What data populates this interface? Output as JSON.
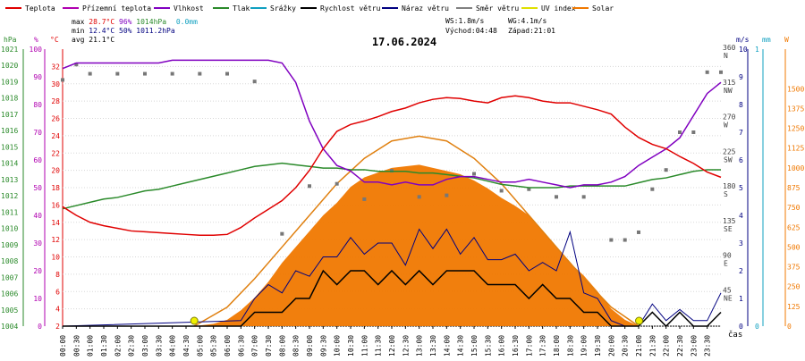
{
  "legend": [
    {
      "label": "Teplota",
      "color": "#e00000"
    },
    {
      "label": "Přízemní teplota",
      "color": "#b000b0"
    },
    {
      "label": "Vlhkost",
      "color": "#8000c0"
    },
    {
      "label": "Tlak",
      "color": "#2a8a2a"
    },
    {
      "label": "Srážky",
      "color": "#10a0c0"
    },
    {
      "label": "Rychlost větru",
      "color": "#000000"
    },
    {
      "label": "Náraz větru",
      "color": "#000080"
    },
    {
      "label": "Směr větru",
      "color": "#808080"
    },
    {
      "label": "UV index",
      "color": "#e0e000"
    },
    {
      "label": "Solar",
      "color": "#f07800"
    }
  ],
  "stats": {
    "max_line": {
      "label": "max",
      "temp": "28.7°C",
      "hum": "96%",
      "press": "1014hPa",
      "rain": "0.0mm"
    },
    "min_line": {
      "label": "min",
      "temp": "12.4°C",
      "hum": "50%",
      "press": "1011.2hPa"
    },
    "avg_line": {
      "label": "avg",
      "temp": "21.1°C"
    },
    "ws": "WS:1.8m/s",
    "wg": "WG:4.1m/s",
    "sunrise": "Východ:04:48",
    "sunset": "Západ:21:01"
  },
  "date": "17.06.2024",
  "x_label": "čas",
  "chart_data": {
    "type": "line",
    "title": "17.06.2024",
    "x_unit": "hours (0-24)",
    "axes": {
      "pressure": {
        "unit": "hPa",
        "range": [
          1004,
          1021
        ],
        "ticks": [
          "1021",
          "1020",
          "1019",
          "1018",
          "1017",
          "1016",
          "1015",
          "1014",
          "1013",
          "1012",
          "1011",
          "1010",
          "1009",
          "1008",
          "1007",
          "1006",
          "1005",
          "1004"
        ],
        "color": "#2a8a2a"
      },
      "humidity": {
        "unit": "%",
        "range": [
          0,
          100
        ],
        "ticks": [
          "100",
          "90",
          "80",
          "70",
          "60",
          "50",
          "40",
          "30",
          "20",
          "10",
          "0"
        ],
        "color": "#b000b0"
      },
      "temperature": {
        "unit": "°C",
        "range": [
          2,
          34
        ],
        "ticks": [
          "32",
          "30",
          "28",
          "26",
          "24",
          "22",
          "20",
          "18",
          "16",
          "14",
          "12",
          "10",
          "8",
          "6",
          "4",
          "2"
        ],
        "color": "#e00000"
      },
      "wind_direction": {
        "range": [
          0,
          360
        ],
        "ticks": [
          {
            "v": 360,
            "t": "360"
          },
          {
            "v": 315,
            "t": "315"
          },
          {
            "v": 270,
            "t": "270"
          },
          {
            "v": 225,
            "t": "225"
          },
          {
            "v": 180,
            "t": "180"
          },
          {
            "v": 135,
            "t": "135"
          },
          {
            "v": 90,
            "t": "90"
          },
          {
            "v": 45,
            "t": "45"
          }
        ],
        "compass": [
          {
            "v": 360,
            "t": "N"
          },
          {
            "v": 315,
            "t": "NW"
          },
          {
            "v": 270,
            "t": "W"
          },
          {
            "v": 225,
            "t": "SW"
          },
          {
            "v": 180,
            "t": "S"
          },
          {
            "v": 135,
            "t": "SE"
          },
          {
            "v": 90,
            "t": "E"
          },
          {
            "v": 45,
            "t": "NE"
          }
        ],
        "color": "#404040"
      },
      "wind_speed": {
        "unit": "m/s",
        "range": [
          0,
          10
        ],
        "ticks": [
          "10",
          "9",
          "8",
          "7",
          "6",
          "5",
          "4",
          "3",
          "2",
          "1",
          "0"
        ],
        "color": "#000080"
      },
      "rain": {
        "unit": "mm",
        "range": [
          0,
          1
        ],
        "ticks": [
          "1",
          "0"
        ],
        "color": "#10a0c0"
      },
      "solar": {
        "unit": "W",
        "range": [
          0,
          1750
        ],
        "ticks": [
          "1500",
          "1375",
          "1250",
          "1125",
          "1000",
          "875",
          "750",
          "625",
          "500",
          "375",
          "250",
          "125",
          "0"
        ],
        "color": "#f07800"
      }
    },
    "x_ticks": [
      "00:00",
      "00:30",
      "01:00",
      "01:30",
      "02:00",
      "02:30",
      "03:00",
      "03:30",
      "04:00",
      "04:30",
      "05:00",
      "05:30",
      "06:00",
      "06:30",
      "07:00",
      "07:30",
      "08:00",
      "08:30",
      "09:00",
      "09:30",
      "10:00",
      "10:30",
      "11:00",
      "11:30",
      "12:00",
      "12:30",
      "13:00",
      "13:30",
      "14:00",
      "14:30",
      "15:00",
      "15:30",
      "16:00",
      "16:30",
      "17:00",
      "17:30",
      "18:00",
      "18:30",
      "19:00",
      "19:30",
      "20:00",
      "20:30",
      "21:00",
      "21:30",
      "22:00",
      "22:30",
      "23:00",
      "23:30"
    ],
    "series": [
      {
        "name": "Teplota",
        "axis": "temperature",
        "color": "#e00000",
        "x": [
          0,
          0.5,
          1,
          1.5,
          2,
          2.5,
          3,
          3.5,
          4,
          4.5,
          5,
          5.5,
          6,
          6.5,
          7,
          7.5,
          8,
          8.5,
          9,
          9.5,
          10,
          10.5,
          11,
          11.5,
          12,
          12.5,
          13,
          13.5,
          14,
          14.5,
          15,
          15.5,
          16,
          16.5,
          17,
          17.5,
          18,
          18.5,
          19,
          19.5,
          20,
          20.5,
          21,
          21.5,
          22,
          22.5,
          23,
          23.5,
          24
        ],
        "y": [
          15.8,
          14.8,
          14.0,
          13.6,
          13.3,
          13.0,
          12.9,
          12.8,
          12.7,
          12.6,
          12.5,
          12.5,
          12.6,
          13.4,
          14.5,
          15.5,
          16.5,
          18.0,
          20.0,
          22.5,
          24.5,
          25.3,
          25.7,
          26.2,
          26.8,
          27.2,
          27.8,
          28.2,
          28.4,
          28.3,
          28.0,
          27.8,
          28.4,
          28.6,
          28.4,
          28.0,
          27.8,
          27.8,
          27.4,
          27.0,
          26.5,
          25.0,
          23.8,
          23.0,
          22.5,
          21.6,
          20.8,
          19.8,
          19.2
        ]
      },
      {
        "name": "Vlhkost",
        "axis": "humidity",
        "color": "#8000c0",
        "x": [
          0,
          0.5,
          1,
          1.5,
          2,
          2.5,
          3,
          3.5,
          4,
          4.5,
          5,
          5.5,
          6,
          6.5,
          7,
          7.5,
          8,
          8.5,
          9,
          9.5,
          10,
          10.5,
          11,
          11.5,
          12,
          12.5,
          13,
          13.5,
          14,
          14.5,
          15,
          15.5,
          16,
          16.5,
          17,
          17.5,
          18,
          18.5,
          19,
          19.5,
          20,
          20.5,
          21,
          21.5,
          22,
          22.5,
          23,
          23.5,
          24
        ],
        "y": [
          93,
          95,
          95,
          95,
          95,
          95,
          95,
          95,
          96,
          96,
          96,
          96,
          96,
          96,
          96,
          96,
          95,
          88,
          74,
          64,
          58,
          56,
          52,
          52,
          51,
          52,
          51,
          51,
          53,
          54,
          54,
          53,
          52,
          52,
          53,
          52,
          51,
          50,
          51,
          51,
          52,
          54,
          58,
          61,
          64,
          68,
          76,
          84,
          88
        ]
      },
      {
        "name": "Tlak",
        "axis": "pressure",
        "color": "#2a8a2a",
        "x": [
          0,
          0.5,
          1,
          1.5,
          2,
          2.5,
          3,
          3.5,
          4,
          4.5,
          5,
          5.5,
          6,
          6.5,
          7,
          7.5,
          8,
          8.5,
          9,
          9.5,
          10,
          10.5,
          11,
          11.5,
          12,
          12.5,
          13,
          13.5,
          14,
          14.5,
          15,
          15.5,
          16,
          16.5,
          17,
          17.5,
          18,
          18.5,
          19,
          19.5,
          20,
          20.5,
          21,
          21.5,
          22,
          22.5,
          23,
          23.5,
          24
        ],
        "y": [
          1011.2,
          1011.4,
          1011.6,
          1011.8,
          1011.9,
          1012.1,
          1012.3,
          1012.4,
          1012.6,
          1012.8,
          1013.0,
          1013.2,
          1013.4,
          1013.6,
          1013.8,
          1013.9,
          1014.0,
          1013.9,
          1013.8,
          1013.7,
          1013.7,
          1013.6,
          1013.6,
          1013.5,
          1013.5,
          1013.5,
          1013.4,
          1013.4,
          1013.3,
          1013.2,
          1013.1,
          1012.9,
          1012.7,
          1012.6,
          1012.5,
          1012.5,
          1012.5,
          1012.6,
          1012.6,
          1012.6,
          1012.6,
          1012.6,
          1012.8,
          1013.0,
          1013.1,
          1013.3,
          1013.5,
          1013.6,
          1013.6
        ]
      },
      {
        "name": "Rychlost větru",
        "axis": "wind_speed",
        "color": "#000000",
        "x": [
          0,
          6.5,
          7,
          7.5,
          8,
          8.5,
          9,
          9.5,
          10,
          10.5,
          11,
          11.5,
          12,
          12.5,
          13,
          13.5,
          14,
          14.5,
          15,
          15.5,
          16,
          16.5,
          17,
          17.5,
          18,
          18.5,
          19,
          19.5,
          20,
          20.5,
          21,
          21.5,
          22,
          22.5,
          23,
          23.5,
          24
        ],
        "y": [
          0,
          0,
          0.5,
          0.5,
          0.5,
          1.0,
          1.0,
          2.0,
          1.5,
          2.0,
          2.0,
          1.5,
          2.0,
          1.5,
          2.0,
          1.5,
          2.0,
          2.0,
          2.0,
          1.5,
          1.5,
          1.5,
          1.0,
          1.5,
          1.0,
          1.0,
          0.5,
          0.5,
          0,
          0,
          0,
          0.5,
          0,
          0.5,
          0,
          0,
          0.5
        ]
      },
      {
        "name": "Náraz větru",
        "axis": "wind_speed",
        "color": "#000080",
        "x": [
          0,
          6.5,
          7,
          7.5,
          8,
          8.5,
          9,
          9.5,
          10,
          10.5,
          11,
          11.5,
          12,
          12.5,
          13,
          13.5,
          14,
          14.5,
          15,
          15.5,
          16,
          16.5,
          17,
          17.5,
          18,
          18.5,
          19,
          19.5,
          20,
          20.5,
          21,
          21.5,
          22,
          22.5,
          23,
          23.5,
          24
        ],
        "y": [
          0,
          0.2,
          1.0,
          1.5,
          1.2,
          2.0,
          1.8,
          2.5,
          2.5,
          3.2,
          2.6,
          3.0,
          3.0,
          2.2,
          3.5,
          2.8,
          3.5,
          2.6,
          3.2,
          2.4,
          2.4,
          2.6,
          2.0,
          2.3,
          2.0,
          3.4,
          1.2,
          1.0,
          0.2,
          0,
          0,
          0.8,
          0.2,
          0.6,
          0.2,
          0.2,
          1.2
        ]
      },
      {
        "name": "Směr větru",
        "axis": "wind_direction",
        "color": "#808080",
        "x": [
          0,
          0.5,
          1,
          2,
          3,
          4,
          5,
          6,
          7,
          8,
          9,
          10,
          11,
          12,
          13,
          14,
          15,
          16,
          17,
          18,
          19,
          20,
          20.5,
          21,
          21.5,
          22,
          22.5,
          23,
          23.5,
          24
        ],
        "y": [
          320,
          340,
          328,
          328,
          328,
          328,
          328,
          328,
          318,
          120,
          182,
          185,
          165,
          202,
          168,
          170,
          198,
          176,
          178,
          168,
          168,
          112,
          112,
          122,
          178,
          203,
          252,
          252,
          330,
          330
        ]
      },
      {
        "name": "Solar",
        "axis": "solar",
        "color": "#f07800",
        "x": [
          4.8,
          5.5,
          6,
          6.5,
          7,
          7.5,
          8,
          8.5,
          9,
          9.5,
          10,
          10.5,
          11,
          11.5,
          12,
          12.5,
          13,
          13.5,
          14,
          14.5,
          15,
          15.5,
          16,
          16.5,
          17,
          17.5,
          18,
          18.5,
          19,
          19.5,
          20,
          20.5,
          21
        ],
        "y": [
          0,
          15,
          40,
          100,
          180,
          280,
          400,
          500,
          600,
          700,
          780,
          880,
          940,
          970,
          1000,
          1010,
          1020,
          1000,
          980,
          960,
          920,
          870,
          810,
          760,
          700,
          600,
          500,
          400,
          320,
          220,
          110,
          40,
          0
        ]
      },
      {
        "name": "Solar",
        "axis": "solar",
        "color": "#f07800",
        "x": [
          4.8,
          6,
          7,
          8,
          9,
          10,
          11,
          12,
          13,
          14,
          15,
          16,
          17,
          18,
          19,
          20,
          21
        ],
        "y": [
          0,
          120,
          300,
          500,
          700,
          900,
          1060,
          1170,
          1200,
          1170,
          1060,
          900,
          700,
          500,
          300,
          120,
          0
        ]
      }
    ],
    "uv_index": {
      "markers_at": [
        "04:48",
        "21:01"
      ],
      "values": [
        0,
        0
      ]
    }
  }
}
